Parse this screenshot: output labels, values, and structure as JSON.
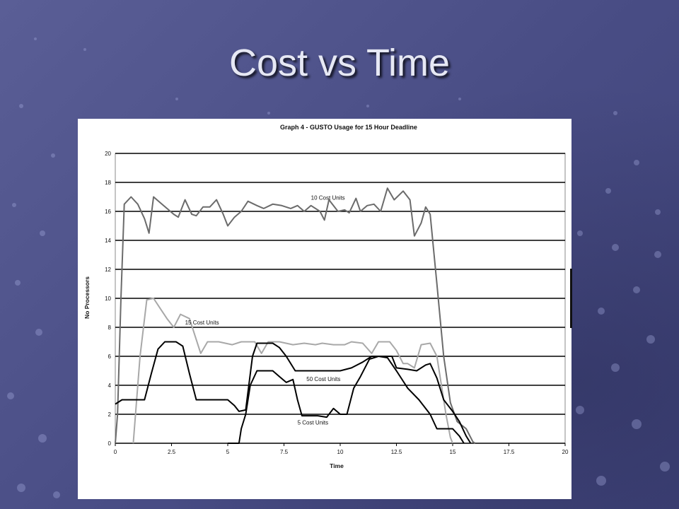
{
  "slide": {
    "title": "Cost vs Time"
  },
  "chart_data": {
    "type": "line",
    "title": "Graph 4 - GUSTO Usage for 15 Hour Deadline",
    "xlabel": "Time",
    "ylabel": "No Processors",
    "xlim": [
      0,
      20
    ],
    "ylim": [
      0,
      20
    ],
    "x_ticks": [
      "0",
      "2.5",
      "5",
      "7.5",
      "10",
      "12.5",
      "15",
      "17.5",
      "20"
    ],
    "y_ticks": [
      "0",
      "2",
      "4",
      "6",
      "8",
      "10",
      "12",
      "14",
      "16",
      "18",
      "20"
    ],
    "grid": "horizontal",
    "colors": {
      "dark_series": "#6b6b6b",
      "light_series": "#a8a8a8",
      "black_series": "#000000"
    },
    "series": [
      {
        "name": "10 Cost Units",
        "color": "#6b6b6b",
        "points": [
          [
            0,
            0
          ],
          [
            0.1,
            2
          ],
          [
            0.25,
            10
          ],
          [
            0.4,
            16.5
          ],
          [
            0.7,
            17
          ],
          [
            1,
            16.5
          ],
          [
            1.3,
            15.5
          ],
          [
            1.5,
            14.5
          ],
          [
            1.7,
            17
          ],
          [
            2,
            16.6
          ],
          [
            2.3,
            16.2
          ],
          [
            2.6,
            15.8
          ],
          [
            2.8,
            15.6
          ],
          [
            3.1,
            16.8
          ],
          [
            3.4,
            15.8
          ],
          [
            3.6,
            15.7
          ],
          [
            3.9,
            16.3
          ],
          [
            4.2,
            16.3
          ],
          [
            4.5,
            16.8
          ],
          [
            4.8,
            15.8
          ],
          [
            5,
            15
          ],
          [
            5.3,
            15.6
          ],
          [
            5.6,
            16
          ],
          [
            5.9,
            16.7
          ],
          [
            6.3,
            16.4
          ],
          [
            6.6,
            16.2
          ],
          [
            7,
            16.5
          ],
          [
            7.4,
            16.4
          ],
          [
            7.8,
            16.2
          ],
          [
            8.1,
            16.4
          ],
          [
            8.4,
            16
          ],
          [
            8.7,
            16.4
          ],
          [
            9.1,
            16
          ],
          [
            9.3,
            15.4
          ],
          [
            9.5,
            16.8
          ],
          [
            9.9,
            16
          ],
          [
            10.2,
            16.1
          ],
          [
            10.4,
            15.9
          ],
          [
            10.7,
            16.9
          ],
          [
            10.9,
            16
          ],
          [
            11.2,
            16.4
          ],
          [
            11.5,
            16.5
          ],
          [
            11.8,
            16
          ],
          [
            12.1,
            17.6
          ],
          [
            12.4,
            16.8
          ],
          [
            12.8,
            17.4
          ],
          [
            13.1,
            16.8
          ],
          [
            13.3,
            14.3
          ],
          [
            13.6,
            15.2
          ],
          [
            13.8,
            16.3
          ],
          [
            14,
            15.8
          ],
          [
            14.3,
            11
          ],
          [
            14.6,
            6
          ],
          [
            14.9,
            2.8
          ],
          [
            15.2,
            1.5
          ],
          [
            15.6,
            1
          ],
          [
            15.9,
            0.1
          ],
          [
            16,
            0
          ]
        ]
      },
      {
        "name": "15 Cost Units",
        "color": "#a8a8a8",
        "points": [
          [
            0.8,
            0
          ],
          [
            1.1,
            6
          ],
          [
            1.4,
            9.9
          ],
          [
            1.7,
            10
          ],
          [
            2,
            9.3
          ],
          [
            2.3,
            8.6
          ],
          [
            2.6,
            8
          ],
          [
            2.9,
            8.9
          ],
          [
            3.3,
            8.6
          ],
          [
            3.8,
            6.2
          ],
          [
            4.1,
            7
          ],
          [
            4.6,
            7
          ],
          [
            5.2,
            6.8
          ],
          [
            5.6,
            7
          ],
          [
            6.2,
            7
          ],
          [
            6.5,
            6.2
          ],
          [
            6.8,
            7
          ],
          [
            7.3,
            7
          ],
          [
            7.9,
            6.8
          ],
          [
            8.4,
            6.9
          ],
          [
            8.9,
            6.8
          ],
          [
            9.2,
            6.9
          ],
          [
            9.7,
            6.8
          ],
          [
            10.2,
            6.8
          ],
          [
            10.5,
            7
          ],
          [
            11,
            6.9
          ],
          [
            11.4,
            6.2
          ],
          [
            11.7,
            7
          ],
          [
            12.2,
            7
          ],
          [
            12.5,
            6.4
          ],
          [
            12.8,
            5.5
          ],
          [
            13,
            5.5
          ],
          [
            13.3,
            5.2
          ],
          [
            13.6,
            6.8
          ],
          [
            14,
            6.9
          ],
          [
            14.3,
            6
          ],
          [
            14.5,
            4
          ],
          [
            14.7,
            2
          ],
          [
            14.9,
            0.4
          ],
          [
            15,
            0
          ]
        ]
      },
      {
        "name": "50 Cost Units",
        "color": "#000000",
        "points": [
          [
            0,
            2.7
          ],
          [
            0.3,
            3
          ],
          [
            1,
            3
          ],
          [
            1.3,
            3
          ],
          [
            1.6,
            4.8
          ],
          [
            1.9,
            6.5
          ],
          [
            2.2,
            7
          ],
          [
            2.7,
            7
          ],
          [
            3,
            6.7
          ],
          [
            3.3,
            4.8
          ],
          [
            3.6,
            3
          ],
          [
            4,
            3
          ],
          [
            4.6,
            3
          ],
          [
            5,
            3
          ],
          [
            5.3,
            2.6
          ],
          [
            5.5,
            2.2
          ],
          [
            5.8,
            2.3
          ],
          [
            6.1,
            6
          ],
          [
            6.3,
            6.9
          ],
          [
            7,
            6.9
          ],
          [
            7.3,
            6.6
          ],
          [
            7.6,
            6
          ],
          [
            8,
            5
          ],
          [
            8.5,
            5
          ],
          [
            9,
            5
          ],
          [
            9.5,
            5
          ],
          [
            10,
            5
          ],
          [
            10.5,
            5.2
          ],
          [
            11,
            5.6
          ],
          [
            11.4,
            6
          ],
          [
            11.8,
            6
          ],
          [
            12.3,
            6
          ],
          [
            12.5,
            5.2
          ],
          [
            13,
            5.1
          ],
          [
            13.4,
            5
          ],
          [
            13.8,
            5.4
          ],
          [
            14,
            5.5
          ],
          [
            14.3,
            4.5
          ],
          [
            14.6,
            3
          ],
          [
            15,
            2.2
          ],
          [
            15.3,
            1.5
          ],
          [
            15.6,
            0.5
          ],
          [
            15.8,
            0
          ]
        ]
      },
      {
        "name": "5 Cost Units",
        "color": "#000000",
        "points": [
          [
            5,
            0
          ],
          [
            5.5,
            0
          ],
          [
            5.6,
            1
          ],
          [
            5.8,
            2
          ],
          [
            6,
            4
          ],
          [
            6.3,
            5
          ],
          [
            7,
            5
          ],
          [
            7.3,
            4.6
          ],
          [
            7.6,
            4.2
          ],
          [
            7.9,
            4.4
          ],
          [
            8.1,
            3
          ],
          [
            8.3,
            1.9
          ],
          [
            8.6,
            1.9
          ],
          [
            9,
            1.9
          ],
          [
            9.4,
            1.8
          ],
          [
            9.7,
            2.4
          ],
          [
            10,
            2
          ],
          [
            10.3,
            2
          ],
          [
            10.6,
            3.8
          ],
          [
            10.9,
            4.6
          ],
          [
            11.3,
            5.8
          ],
          [
            11.7,
            6
          ],
          [
            12.1,
            5.9
          ],
          [
            12.5,
            5
          ],
          [
            13,
            3.8
          ],
          [
            13.5,
            3
          ],
          [
            14,
            2
          ],
          [
            14.3,
            1
          ],
          [
            14.7,
            1
          ],
          [
            15,
            1
          ],
          [
            15.3,
            0.5
          ],
          [
            15.5,
            0
          ]
        ]
      }
    ],
    "annotations": [
      {
        "text": "10 Cost Units",
        "x": 8.7,
        "y": 16.8
      },
      {
        "text": "15 Cost Units",
        "x": 3.1,
        "y": 8.2
      },
      {
        "text": "50 Cost Units",
        "x": 8.5,
        "y": 4.3
      },
      {
        "text": "5 Cost Units",
        "x": 8.1,
        "y": 1.3
      }
    ]
  }
}
